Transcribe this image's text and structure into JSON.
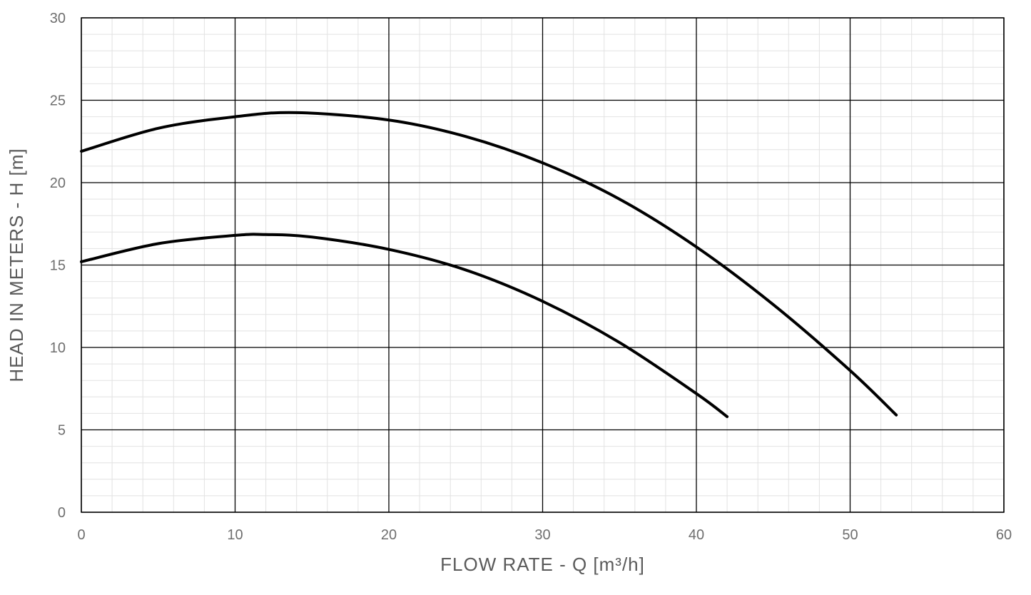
{
  "chart_data": {
    "type": "line",
    "xlabel": "FLOW RATE - Q [m³/h]",
    "ylabel": "HEAD IN METERS - H [m]",
    "xlim": [
      0,
      60
    ],
    "ylim": [
      0,
      30
    ],
    "x_ticks": [
      0,
      10,
      20,
      30,
      40,
      50,
      60
    ],
    "y_ticks": [
      0,
      5,
      10,
      15,
      20,
      25,
      30
    ],
    "x_tick_labels": [
      "0",
      "10",
      "20",
      "30",
      "40",
      "50",
      "60"
    ],
    "y_tick_labels": [
      "0",
      "5",
      "10",
      "15",
      "20",
      "25",
      "30"
    ],
    "minor_x_step": 2,
    "minor_y_step": 1,
    "grid": true,
    "series": [
      {
        "x": [
          0,
          5,
          10,
          14,
          20,
          25,
          30,
          35,
          40,
          45,
          50,
          53
        ],
        "values": [
          21.9,
          23.3,
          24.0,
          24.25,
          23.8,
          22.8,
          21.2,
          19.0,
          16.1,
          12.6,
          8.6,
          5.9
        ]
      },
      {
        "x": [
          0,
          5,
          10,
          12,
          15,
          20,
          25,
          30,
          35,
          40,
          42
        ],
        "values": [
          15.2,
          16.3,
          16.8,
          16.85,
          16.7,
          15.95,
          14.7,
          12.8,
          10.3,
          7.2,
          5.8
        ]
      }
    ],
    "colors": {
      "curve": "#000000",
      "major_grid": "#000000",
      "minor_grid": "#e2e2e2",
      "text": "#6e6e6e"
    }
  }
}
